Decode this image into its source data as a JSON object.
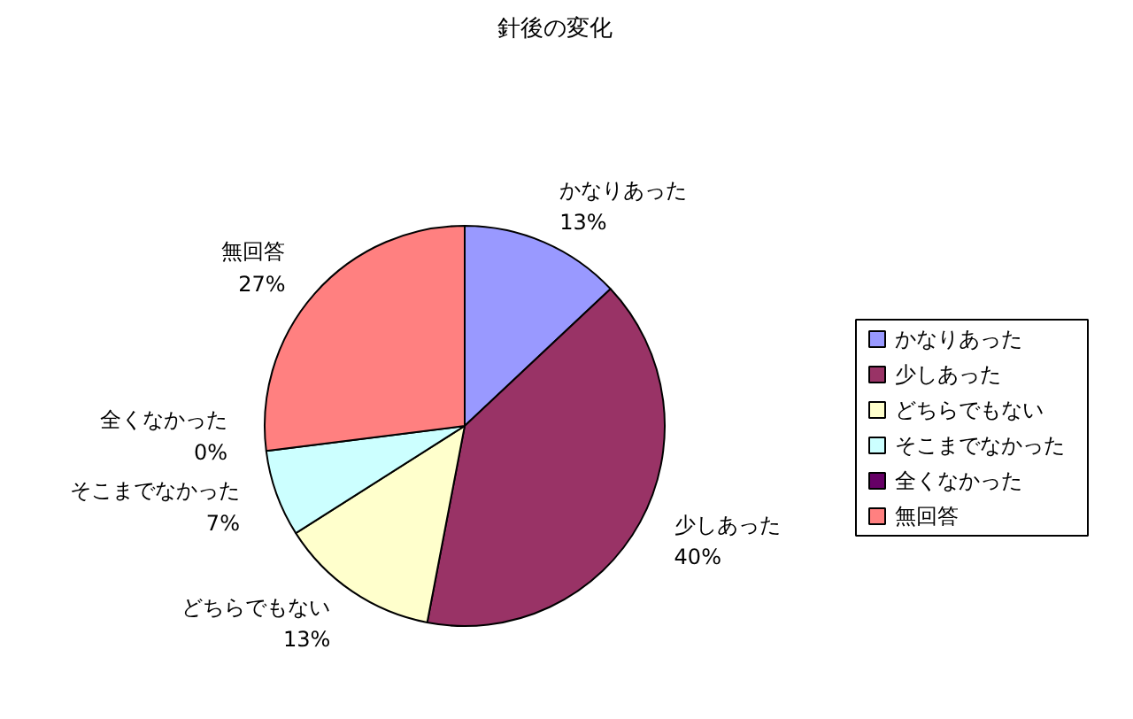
{
  "chart_data": {
    "type": "pie",
    "title": "針後の変化",
    "categories": [
      "かなりあった",
      "少しあった",
      "どちらでもない",
      "そこまでなかった",
      "全くなかった",
      "無回答"
    ],
    "values": [
      13,
      40,
      13,
      7,
      0,
      27
    ],
    "value_labels": [
      "13%",
      "40%",
      "13%",
      "7%",
      "0%",
      "27%"
    ],
    "colors": [
      "#9999ff",
      "#993366",
      "#ffffcc",
      "#ccffff",
      "#660066",
      "#ff8080"
    ],
    "legend": "right"
  }
}
